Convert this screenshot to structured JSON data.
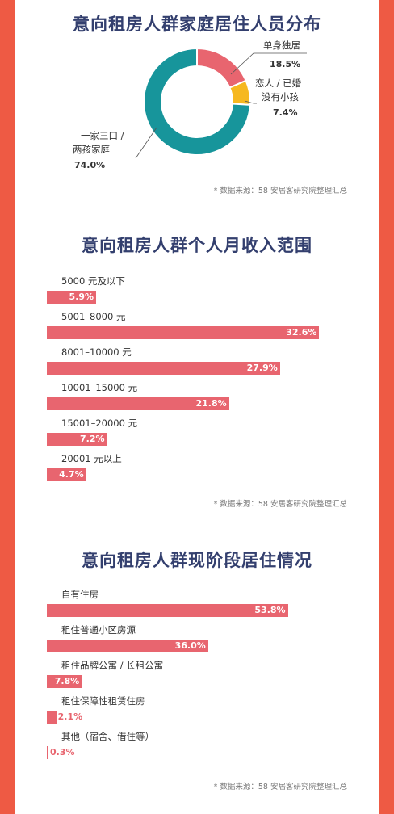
{
  "chart_data": [
    {
      "type": "pie",
      "title": "意向租房人群家庭居住人员分布",
      "slices": [
        {
          "name": "单身独居",
          "value": 18.5,
          "value_label": "18.5%",
          "color": "#e8656f"
        },
        {
          "name": "恋人 / 已婚没有小孩",
          "name_lines": [
            "恋人 / 已婚",
            "没有小孩"
          ],
          "value": 7.4,
          "value_label": "7.4%",
          "color": "#f6b81f"
        },
        {
          "name": "一家三口 / 两孩家庭",
          "name_lines": [
            "一家三口 /",
            "两孩家庭"
          ],
          "value": 74.0,
          "value_label": "74.0%",
          "color": "#17959b"
        }
      ],
      "source": "* 数据来源：58 安居客研究院整理汇总"
    },
    {
      "type": "bar",
      "title": "意向租房人群个人月收入范围",
      "categories": [
        "5000 元及以下",
        "5001–8000 元",
        "8001–10000 元",
        "10001–15000 元",
        "15001–20000 元",
        "20001 元以上"
      ],
      "values": [
        5.9,
        32.6,
        27.9,
        21.8,
        7.2,
        4.7
      ],
      "value_labels": [
        "5.9%",
        "32.6%",
        "27.9%",
        "21.8%",
        "7.2%",
        "4.7%"
      ],
      "source": "* 数据来源：58 安居客研究院整理汇总"
    },
    {
      "type": "bar",
      "title": "意向租房人群现阶段居住情况",
      "categories": [
        "自有住房",
        "租住普通小区房源",
        "租住品牌公寓 / 长租公寓",
        "租住保障性租赁住房",
        "其他（宿舍、借住等）"
      ],
      "values": [
        53.8,
        36.0,
        7.8,
        2.1,
        0.3
      ],
      "value_labels": [
        "53.8%",
        "36.0%",
        "7.8%",
        "2.1%",
        "0.3%"
      ],
      "source": "* 数据来源：58 安居客研究院整理汇总"
    }
  ],
  "colors": {
    "background": "#ee5a44",
    "bar": "#e8656f",
    "title": "#333f6e"
  }
}
